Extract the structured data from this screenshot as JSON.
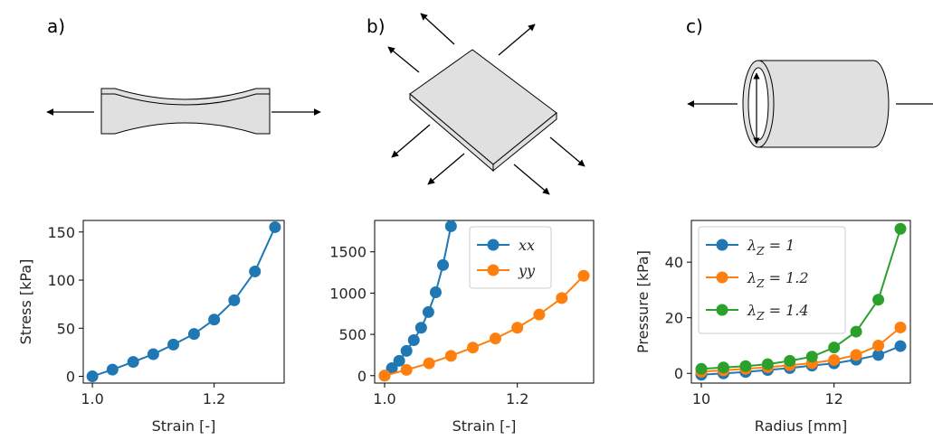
{
  "panel_labels": [
    "a)",
    "b)",
    "c)"
  ],
  "chart_data": [
    {
      "type": "line",
      "xlabel": "Strain [-]",
      "ylabel": "Stress [kPa]",
      "xlim": [
        0.985,
        1.315
      ],
      "ylim": [
        -7,
        162
      ],
      "xticks": [
        1.0,
        1.2
      ],
      "xtick_labels": [
        "1.0",
        "1.2"
      ],
      "yticks": [
        0,
        50,
        100,
        150
      ],
      "ytick_labels": [
        "0",
        "50",
        "100",
        "150"
      ],
      "series": [
        {
          "color": "#1f77b4",
          "x": [
            1.0,
            1.033,
            1.067,
            1.1,
            1.133,
            1.167,
            1.2,
            1.233,
            1.267,
            1.3
          ],
          "y": [
            0,
            7,
            15,
            23,
            33,
            44,
            59,
            79,
            109,
            155
          ]
        }
      ]
    },
    {
      "type": "line",
      "xlabel": "Strain [-]",
      "ylabel": "",
      "xlim": [
        0.985,
        1.315
      ],
      "ylim": [
        -90,
        1880
      ],
      "xticks": [
        1.0,
        1.2
      ],
      "xtick_labels": [
        "1.0",
        "1.2"
      ],
      "yticks": [
        0,
        500,
        1000,
        1500
      ],
      "ytick_labels": [
        "0",
        "500",
        "1000",
        "1500"
      ],
      "legend_position": "top-right",
      "series": [
        {
          "name": "xx",
          "color": "#1f77b4",
          "x": [
            1.0,
            1.011,
            1.022,
            1.033,
            1.044,
            1.055,
            1.066,
            1.077,
            1.088,
            1.1
          ],
          "y": [
            0,
            90,
            180,
            300,
            430,
            580,
            770,
            1010,
            1340,
            1810
          ]
        },
        {
          "name": "yy",
          "color": "#ff7f0e",
          "x": [
            1.0,
            1.033,
            1.067,
            1.1,
            1.133,
            1.167,
            1.2,
            1.233,
            1.267,
            1.3
          ],
          "y": [
            0,
            70,
            150,
            240,
            340,
            450,
            580,
            740,
            940,
            1210
          ]
        }
      ]
    },
    {
      "type": "line",
      "xlabel": "Radius [mm]",
      "ylabel": "Pressure [kPa]",
      "xlim": [
        9.85,
        13.15
      ],
      "ylim": [
        -3.5,
        55
      ],
      "xticks": [
        10,
        12
      ],
      "xtick_labels": [
        "10",
        "12"
      ],
      "yticks": [
        0,
        20,
        40
      ],
      "ytick_labels": [
        "0",
        "20",
        "40"
      ],
      "legend_position": "top-left",
      "series": [
        {
          "name": "λZ = 1",
          "color": "#1f77b4",
          "x": [
            10.0,
            10.333,
            10.667,
            11.0,
            11.333,
            11.667,
            12.0,
            12.333,
            12.667,
            13.0
          ],
          "y": [
            -0.5,
            0.0,
            0.5,
            1.2,
            1.9,
            2.8,
            3.6,
            4.9,
            6.6,
            9.8
          ]
        },
        {
          "name": "λZ = 1.2",
          "color": "#ff7f0e",
          "x": [
            10.0,
            10.333,
            10.667,
            11.0,
            11.333,
            11.667,
            12.0,
            12.333,
            12.667,
            13.0
          ],
          "y": [
            0.6,
            1.1,
            1.6,
            2.2,
            2.9,
            3.7,
            4.8,
            6.6,
            10.0,
            16.5
          ]
        },
        {
          "name": "λZ = 1.4",
          "color": "#2ca02c",
          "x": [
            10.0,
            10.333,
            10.667,
            11.0,
            11.333,
            11.667,
            12.0,
            12.333,
            12.667,
            13.0
          ],
          "y": [
            1.6,
            2.1,
            2.6,
            3.3,
            4.5,
            6.0,
            9.3,
            15.0,
            26.5,
            52.0
          ]
        }
      ]
    }
  ]
}
